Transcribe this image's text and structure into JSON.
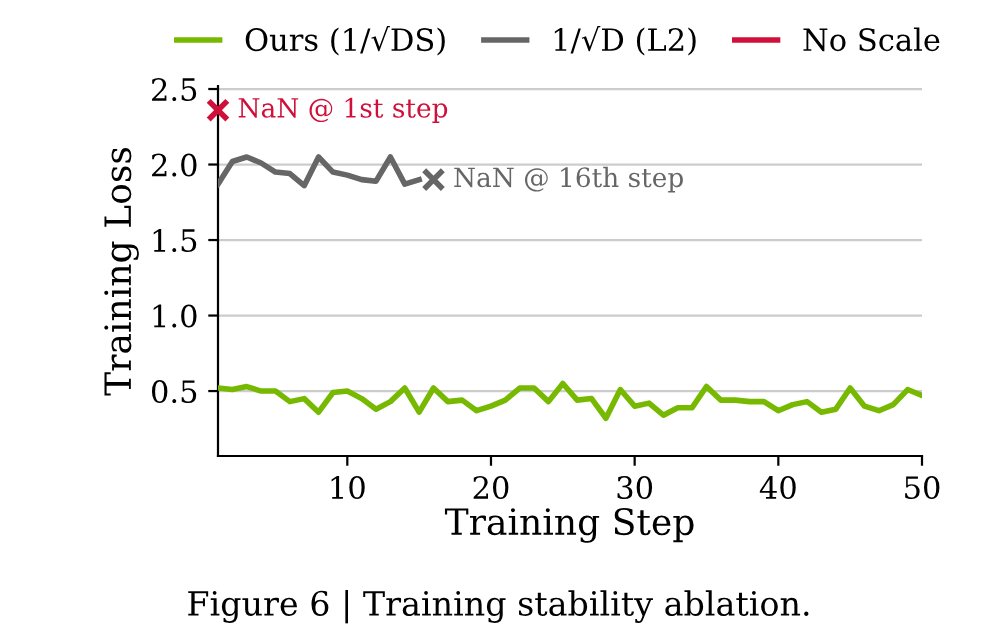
{
  "chart_data": {
    "type": "line",
    "xlabel": "Training Step",
    "ylabel": "Training Loss",
    "xlim": [
      1,
      50
    ],
    "xticks": [
      10,
      20,
      30,
      40,
      50
    ],
    "ylim": [
      0.07,
      2.52
    ],
    "yticks": [
      0.5,
      {
        "value": 1,
        "label": "1.0"
      },
      1.5,
      {
        "value": 2,
        "label": "2.0"
      },
      2.5
    ],
    "grid": "y",
    "legend": "top",
    "marker": "none",
    "line_style": "solid",
    "series": [
      {
        "name": "Ours (1/√DS)",
        "color": "#76b900",
        "x": [
          1,
          2,
          3,
          4,
          5,
          6,
          7,
          8,
          9,
          10,
          11,
          12,
          13,
          14,
          15,
          16,
          17,
          18,
          19,
          20,
          21,
          22,
          23,
          24,
          25,
          26,
          27,
          28,
          29,
          30,
          31,
          32,
          33,
          34,
          35,
          36,
          37,
          38,
          39,
          40,
          41,
          42,
          43,
          44,
          45,
          46,
          47,
          48,
          49,
          50
        ],
        "values": [
          0.52,
          0.51,
          0.53,
          0.5,
          0.5,
          0.43,
          0.45,
          0.36,
          0.49,
          0.5,
          0.45,
          0.38,
          0.43,
          0.52,
          0.36,
          0.52,
          0.43,
          0.44,
          0.37,
          0.4,
          0.44,
          0.52,
          0.52,
          0.43,
          0.55,
          0.44,
          0.45,
          0.32,
          0.51,
          0.4,
          0.42,
          0.34,
          0.39,
          0.39,
          0.53,
          0.44,
          0.44,
          0.43,
          0.43,
          0.37,
          0.41,
          0.43,
          0.36,
          0.38,
          0.52,
          0.4,
          0.37,
          0.41,
          0.51,
          0.47
        ]
      },
      {
        "name": "1/√D (L2)",
        "color": "#666666",
        "x": [
          1,
          2,
          3,
          4,
          5,
          6,
          7,
          8,
          9,
          10,
          11,
          12,
          13,
          14,
          15
        ],
        "values": [
          1.87,
          2.02,
          2.05,
          2.01,
          1.95,
          1.94,
          1.86,
          2.05,
          1.95,
          1.93,
          1.9,
          1.89,
          2.05,
          1.87,
          1.9
        ]
      },
      {
        "type": "scatter",
        "marker": "cross",
        "color": "#666666",
        "x": [
          16
        ],
        "values": [
          1.9
        ]
      },
      {
        "name": "No Scale",
        "type": "scatter",
        "marker": "cross",
        "color": "#d0103a",
        "x": [
          1
        ],
        "values": [
          2.36
        ]
      }
    ],
    "annotations": [
      {
        "text": "NaN @ 1st step",
        "x": 1,
        "y": 2.36
      },
      {
        "text": "NaN @ 16th step",
        "x": 16,
        "y": 1.9
      },
      "Figure 6 | Training stability ablation."
    ]
  }
}
